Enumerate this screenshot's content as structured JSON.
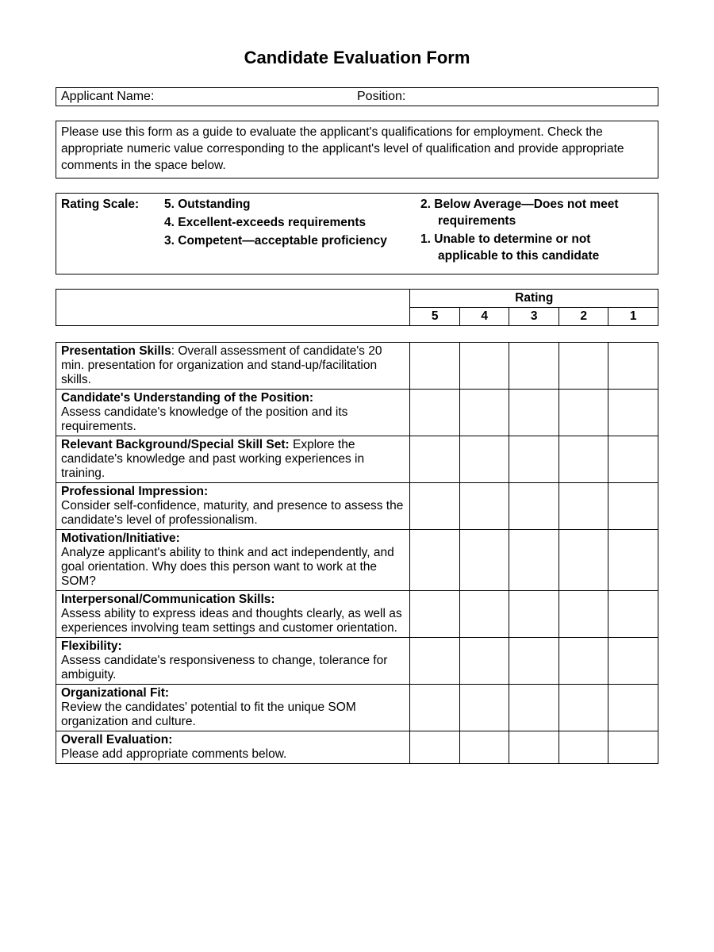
{
  "title": "Candidate Evaluation Form",
  "header_row": {
    "applicant_label": "Applicant Name:",
    "position_label": "Position:"
  },
  "instructions": "Please use this form as a guide to evaluate the applicant's qualifications for employment.  Check the appropriate numeric value corresponding to the applicant's level of qualification and provide appropriate comments in the space below.",
  "rating_scale": {
    "label": "Rating Scale:",
    "left": [
      {
        "num": "5.",
        "text": "Outstanding"
      },
      {
        "num": "4.",
        "text": "Excellent-exceeds requirements"
      },
      {
        "num": "3.",
        "text": "Competent—acceptable proficiency"
      }
    ],
    "right": [
      {
        "num": "2.",
        "text": "Below Average—Does not meet requirements"
      },
      {
        "num": "1.",
        "text": "Unable to determine or not applicable to this candidate"
      }
    ]
  },
  "table_headers": {
    "rating_label": "Rating",
    "cols": [
      "5",
      "4",
      "3",
      "2",
      "1"
    ]
  },
  "criteria": [
    {
      "title": "Presentation Skills",
      "sep": ": ",
      "desc": "Overall assessment of candidate's 20 min. presentation for organization and stand-up/facilitation skills."
    },
    {
      "title": "Candidate's Understanding of the Position:",
      "sep": "",
      "desc": "Assess candidate's knowledge of the position and its requirements."
    },
    {
      "title": "Relevant Background/Special Skill Set:",
      "sep": " ",
      "desc": "Explore the candidate's knowledge and past working experiences in training."
    },
    {
      "title": "Professional Impression:",
      "sep": "",
      "desc": "Consider self-confidence, maturity, and presence to assess the candidate's level of professionalism."
    },
    {
      "title": "Motivation/Initiative:",
      "sep": "",
      "desc": "Analyze applicant's ability to think and act independently, and goal orientation.  Why does this person want to work at the SOM?"
    },
    {
      "title": "Interpersonal/Communication Skills:",
      "sep": "",
      "desc": "Assess ability to express ideas and thoughts clearly, as well as experiences involving team settings and customer orientation."
    },
    {
      "title": "Flexibility:",
      "sep": "",
      "desc": "Assess candidate's responsiveness to change, tolerance for ambiguity."
    },
    {
      "title": "Organizational Fit:",
      "sep": "",
      "desc": "Review the candidates' potential to fit the unique SOM organization and culture."
    },
    {
      "title": "Overall Evaluation:",
      "sep": "",
      "desc": "Please add appropriate comments below."
    }
  ]
}
